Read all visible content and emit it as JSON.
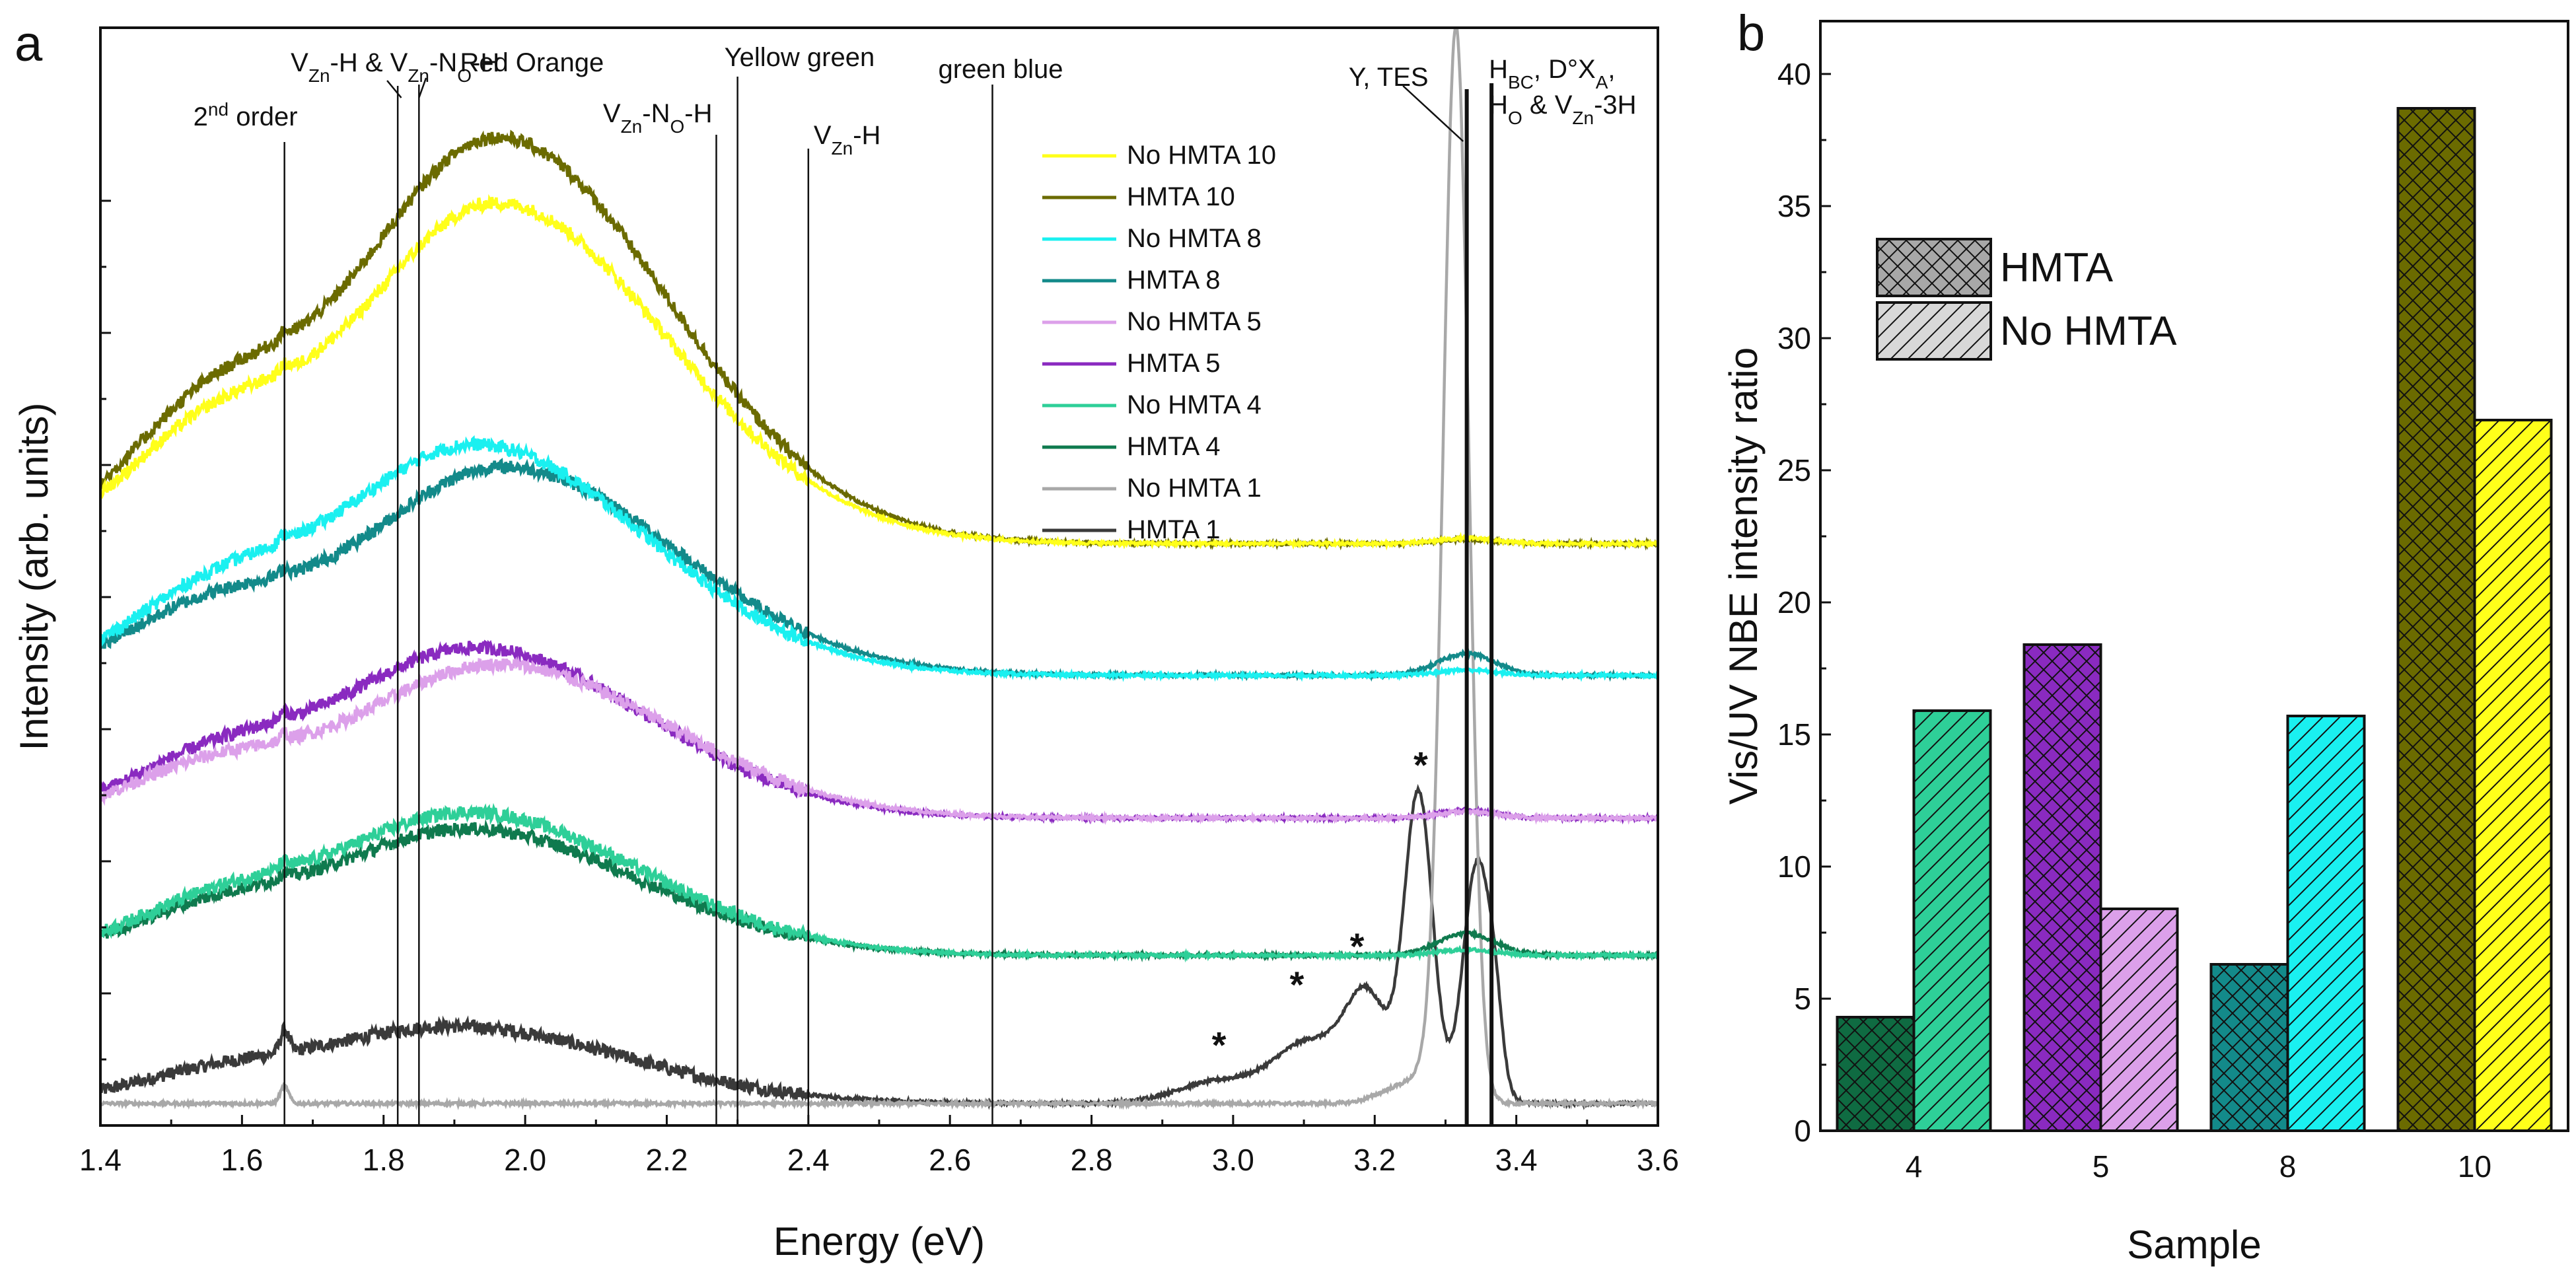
{
  "chart_data": [
    {
      "panel_label": "a",
      "type": "line",
      "title": "",
      "xlabel": "Energy (eV)",
      "ylabel": "Intensity (arb. units)",
      "xlim": [
        1.4,
        3.6
      ],
      "ylim": [
        0,
        1
      ],
      "x_ticks": [
        "1.4",
        "1.6",
        "1.8",
        "2.0",
        "2.2",
        "2.4",
        "2.6",
        "2.8",
        "3.0",
        "3.2",
        "3.4",
        "3.6"
      ],
      "y_tick_labels": "none (arbitrary units)",
      "series": [
        {
          "name": "No HMTA 10",
          "color": "#ffff1a",
          "offset": 0.53,
          "peak_vis": 0.31,
          "vis_center": 1.96,
          "nbe": 0.005
        },
        {
          "name": "HMTA 10",
          "color": "#6b6b00",
          "offset": 0.53,
          "peak_vis": 0.37,
          "vis_center": 1.96,
          "nbe": 0.004
        },
        {
          "name": "No HMTA 8",
          "color": "#1af0f0",
          "offset": 0.41,
          "peak_vis": 0.21,
          "vis_center": 1.93,
          "nbe": 0.005
        },
        {
          "name": "HMTA 8",
          "color": "#138a8a",
          "offset": 0.41,
          "peak_vis": 0.19,
          "vis_center": 1.97,
          "nbe": 0.02
        },
        {
          "name": "No HMTA 5",
          "color": "#dca0ea",
          "offset": 0.28,
          "peak_vis": 0.14,
          "vis_center": 1.96,
          "nbe": 0.006
        },
        {
          "name": "HMTA 5",
          "color": "#8a2ac0",
          "offset": 0.28,
          "peak_vis": 0.155,
          "vis_center": 1.93,
          "nbe": 0.007
        },
        {
          "name": "No HMTA 4",
          "color": "#2ecf98",
          "offset": 0.155,
          "peak_vis": 0.13,
          "vis_center": 1.92,
          "nbe": 0.005
        },
        {
          "name": "HMTA 4",
          "color": "#0f7a4e",
          "offset": 0.155,
          "peak_vis": 0.115,
          "vis_center": 1.92,
          "nbe": 0.02
        },
        {
          "name": "No HMTA 1",
          "color": "#a8a8a8",
          "offset": 0.02,
          "peak_vis": 0.0,
          "vis_center": 1.9,
          "nbe": 0.96
        },
        {
          "name": "HMTA 1",
          "color": "#3a3a3a",
          "offset": 0.02,
          "peak_vis": 0.07,
          "vis_center": 1.9,
          "nbe": 0.31
        }
      ],
      "annotations": [
        {
          "x": 1.66,
          "label_parts": [
            {
              "t": "2"
            },
            {
              "t": "nd",
              "sup": true
            },
            {
              "t": " order"
            }
          ],
          "text": "2nd order"
        },
        {
          "x": 1.82,
          "label_parts": [
            {
              "t": "V"
            },
            {
              "t": "Zn",
              "sub": true
            },
            {
              "t": "-H & V"
            },
            {
              "t": "Zn",
              "sub": true
            },
            {
              "t": "-N"
            },
            {
              "t": "O",
              "sub": true
            },
            {
              "t": "-H"
            }
          ],
          "text": "VZn-H & VZn-NO-H"
        },
        {
          "x": 1.85,
          "label_parts": [
            {
              "t": "Red Orange"
            }
          ],
          "text": "Red Orange"
        },
        {
          "x": 2.27,
          "label_parts": [
            {
              "t": "V"
            },
            {
              "t": "Zn",
              "sub": true
            },
            {
              "t": "-N"
            },
            {
              "t": "O",
              "sub": true
            },
            {
              "t": "-H"
            }
          ],
          "text": "VZn-NO-H"
        },
        {
          "x": 2.3,
          "label_parts": [
            {
              "t": "Yellow green"
            }
          ],
          "text": "Yellow green"
        },
        {
          "x": 2.4,
          "label_parts": [
            {
              "t": "V"
            },
            {
              "t": "Zn",
              "sub": true
            },
            {
              "t": "-H"
            }
          ],
          "text": "VZn-H"
        },
        {
          "x": 2.66,
          "label_parts": [
            {
              "t": "green blue"
            }
          ],
          "text": "green blue"
        },
        {
          "x": 3.33,
          "label_parts": [
            {
              "t": "Y, TES"
            }
          ],
          "text": "Y, TES"
        },
        {
          "x": 3.365,
          "label_parts": [
            {
              "t": "H"
            },
            {
              "t": "BC",
              "sub": true
            },
            {
              "t": ", D°X"
            },
            {
              "t": "A",
              "sub": true
            },
            {
              "t": ","
            }
          ],
          "text": "HBC, D°XA,"
        },
        {
          "x": 3.365,
          "label_parts": [
            {
              "t": "H"
            },
            {
              "t": "O",
              "sub": true
            },
            {
              "t": " & V"
            },
            {
              "t": "Zn",
              "sub": true
            },
            {
              "t": "-3H"
            }
          ],
          "text": "HO & VZn-3H"
        }
      ],
      "star_markers": [
        "*",
        "*",
        "*",
        "*"
      ]
    },
    {
      "panel_label": "b",
      "type": "bar",
      "title": "",
      "xlabel": "Sample",
      "ylabel": "Vis/UV NBE intensity ratio",
      "categories": [
        "4",
        "5",
        "8",
        "10"
      ],
      "ylim": [
        0,
        42
      ],
      "y_ticks": [
        "0",
        "5",
        "10",
        "15",
        "20",
        "25",
        "30",
        "35",
        "40"
      ],
      "series": [
        {
          "name": "HMTA",
          "pattern": "crosshatch",
          "values": [
            4.3,
            18.4,
            6.3,
            38.7
          ],
          "colors": [
            "#0f6b42",
            "#8a2ac0",
            "#138a8a",
            "#6b6b00"
          ]
        },
        {
          "name": "No HMTA",
          "pattern": "diagonal",
          "values": [
            15.9,
            8.4,
            15.7,
            26.9
          ],
          "colors": [
            "#2ecf98",
            "#dca0ea",
            "#1af0f0",
            "#ffff1a"
          ]
        }
      ],
      "legend": [
        {
          "label": "HMTA",
          "swatch": "#a8a8a8",
          "pattern": "crosshatch"
        },
        {
          "label": "No HMTA",
          "swatch": "#d8d8d8",
          "pattern": "diagonal"
        }
      ]
    }
  ]
}
